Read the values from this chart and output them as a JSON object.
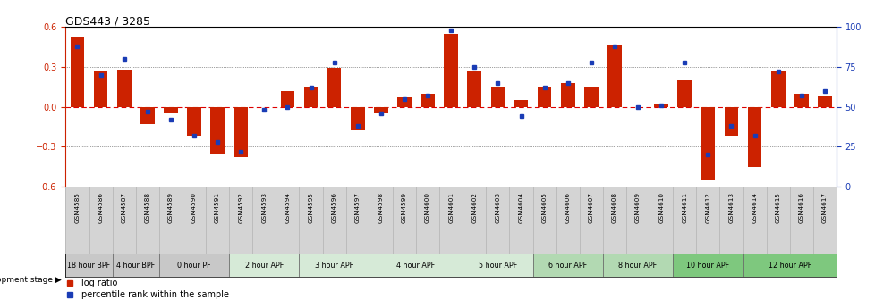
{
  "title": "GDS443 / 3285",
  "samples": [
    "GSM4585",
    "GSM4586",
    "GSM4587",
    "GSM4588",
    "GSM4589",
    "GSM4590",
    "GSM4591",
    "GSM4592",
    "GSM4593",
    "GSM4594",
    "GSM4595",
    "GSM4596",
    "GSM4597",
    "GSM4598",
    "GSM4599",
    "GSM4600",
    "GSM4601",
    "GSM4602",
    "GSM4603",
    "GSM4604",
    "GSM4605",
    "GSM4606",
    "GSM4607",
    "GSM4608",
    "GSM4609",
    "GSM4610",
    "GSM4611",
    "GSM4612",
    "GSM4613",
    "GSM4614",
    "GSM4615",
    "GSM4616",
    "GSM4617"
  ],
  "log_ratio": [
    0.52,
    0.27,
    0.28,
    -0.13,
    -0.05,
    -0.22,
    -0.35,
    -0.38,
    0.0,
    0.12,
    0.15,
    0.29,
    -0.18,
    -0.05,
    0.07,
    0.1,
    0.55,
    0.27,
    0.15,
    0.05,
    0.15,
    0.18,
    0.15,
    0.47,
    0.0,
    0.02,
    0.2,
    -0.55,
    -0.22,
    -0.45,
    0.27,
    0.1,
    0.08
  ],
  "percentile": [
    88,
    70,
    80,
    47,
    42,
    32,
    28,
    22,
    48,
    50,
    62,
    78,
    38,
    46,
    55,
    57,
    98,
    75,
    65,
    44,
    62,
    65,
    78,
    88,
    50,
    51,
    78,
    20,
    38,
    32,
    72,
    57,
    60
  ],
  "stages": [
    {
      "label": "18 hour BPF",
      "start": 0,
      "end": 2,
      "color": "#c8c8c8"
    },
    {
      "label": "4 hour BPF",
      "start": 2,
      "end": 4,
      "color": "#c8c8c8"
    },
    {
      "label": "0 hour PF",
      "start": 4,
      "end": 7,
      "color": "#c8c8c8"
    },
    {
      "label": "2 hour APF",
      "start": 7,
      "end": 10,
      "color": "#d6ead7"
    },
    {
      "label": "3 hour APF",
      "start": 10,
      "end": 13,
      "color": "#d6ead7"
    },
    {
      "label": "4 hour APF",
      "start": 13,
      "end": 17,
      "color": "#d6ead7"
    },
    {
      "label": "5 hour APF",
      "start": 17,
      "end": 20,
      "color": "#d6ead7"
    },
    {
      "label": "6 hour APF",
      "start": 20,
      "end": 23,
      "color": "#b2d9b2"
    },
    {
      "label": "8 hour APF",
      "start": 23,
      "end": 26,
      "color": "#b2d9b2"
    },
    {
      "label": "10 hour APF",
      "start": 26,
      "end": 29,
      "color": "#7ec87e"
    },
    {
      "label": "12 hour APF",
      "start": 29,
      "end": 33,
      "color": "#7ec87e"
    }
  ],
  "ylim": [
    -0.6,
    0.6
  ],
  "yticks_left": [
    -0.6,
    -0.3,
    0.0,
    0.3,
    0.6
  ],
  "yticks_right": [
    0,
    25,
    50,
    75,
    100
  ],
  "bar_color": "#cc2200",
  "dot_color": "#1a3cb5",
  "zero_line_color": "#dd0000",
  "bg_color": "#ffffff",
  "sample_strip_color": "#d4d4d4"
}
